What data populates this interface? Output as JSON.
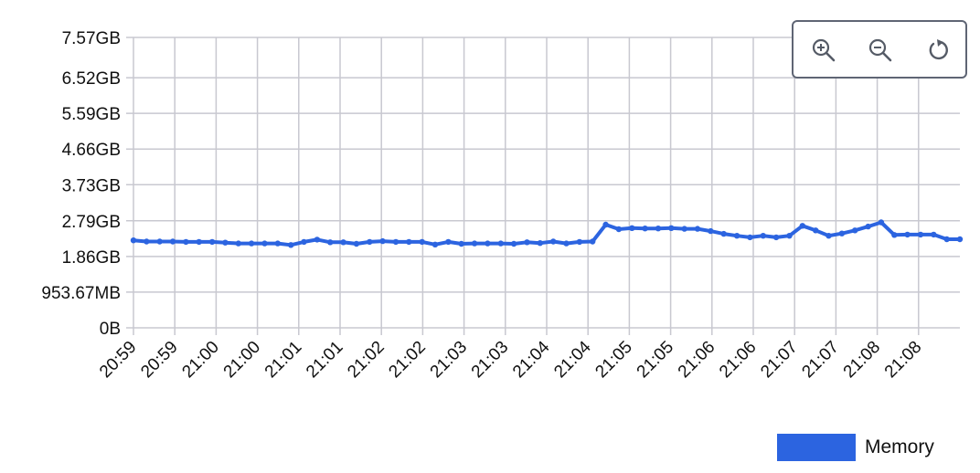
{
  "colors": {
    "series": "#2c64e0",
    "grid": "#c8c8d0",
    "toolbar_border": "#5f6574",
    "icon": "#555b66"
  },
  "toolbar": {
    "zoom_in_icon": "zoom-in-icon",
    "zoom_out_icon": "zoom-out-icon",
    "reset_icon": "reset-icon"
  },
  "legend": {
    "label": "Memory"
  },
  "chart_data": {
    "type": "line",
    "title": "",
    "xlabel": "",
    "ylabel": "",
    "y_tick_labels": [
      "0B",
      "953.67MB",
      "1.86GB",
      "2.79GB",
      "3.73GB",
      "4.66GB",
      "5.59GB",
      "6.52GB",
      "7.57GB"
    ],
    "y_tick_values_gb": [
      0,
      0.931,
      1.86,
      2.79,
      3.73,
      4.66,
      5.59,
      6.52,
      7.57
    ],
    "ylim_gb": [
      0,
      7.57
    ],
    "x_tick_labels": [
      "20:59",
      "20:59",
      "21:00",
      "21:00",
      "21:01",
      "21:01",
      "21:02",
      "21:02",
      "21:03",
      "21:03",
      "21:04",
      "21:04",
      "21:05",
      "21:05",
      "21:06",
      "21:06",
      "21:07",
      "21:07",
      "21:08",
      "21:08"
    ],
    "grid": true,
    "legend_position": "bottom-right",
    "series": [
      {
        "name": "Memory",
        "unit": "GB",
        "values": [
          2.28,
          2.25,
          2.25,
          2.25,
          2.24,
          2.24,
          2.24,
          2.22,
          2.2,
          2.2,
          2.2,
          2.2,
          2.16,
          2.24,
          2.3,
          2.23,
          2.23,
          2.19,
          2.24,
          2.26,
          2.24,
          2.24,
          2.24,
          2.17,
          2.24,
          2.19,
          2.2,
          2.2,
          2.2,
          2.19,
          2.23,
          2.21,
          2.25,
          2.2,
          2.24,
          2.25,
          2.69,
          2.57,
          2.6,
          2.59,
          2.59,
          2.6,
          2.58,
          2.58,
          2.52,
          2.45,
          2.4,
          2.36,
          2.4,
          2.36,
          2.4,
          2.66,
          2.54,
          2.4,
          2.46,
          2.54,
          2.64,
          2.75,
          2.42,
          2.43,
          2.43,
          2.43,
          2.31,
          2.31
        ]
      }
    ]
  }
}
